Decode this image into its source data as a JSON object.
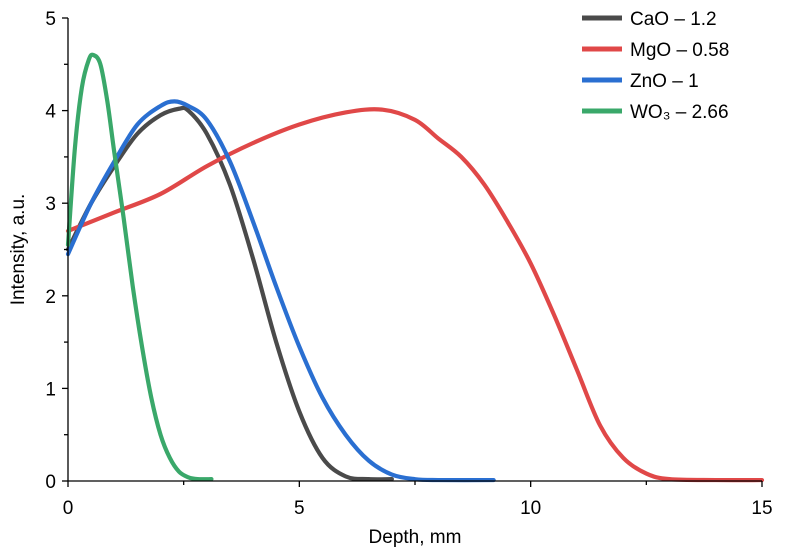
{
  "chart_data": {
    "type": "line",
    "xlabel": "Depth, mm",
    "ylabel": "Intensity, a.u.",
    "xlim": [
      0,
      15
    ],
    "ylim": [
      0,
      5
    ],
    "xticks": [
      "0",
      "5",
      "10",
      "15"
    ],
    "yticks": [
      "0",
      "1",
      "2",
      "3",
      "4",
      "5"
    ],
    "grid": false,
    "legend_position": "top-right",
    "series": [
      {
        "name": "CaO – 1.2",
        "color": "#4a4a4a",
        "x": [
          0,
          0.5,
          1.0,
          1.5,
          2.0,
          2.4,
          2.6,
          3.0,
          3.5,
          4.0,
          4.5,
          5.0,
          5.5,
          6.0,
          6.5,
          7.0
        ],
        "y": [
          2.5,
          3.0,
          3.4,
          3.75,
          3.95,
          4.02,
          4.0,
          3.75,
          3.2,
          2.4,
          1.5,
          0.75,
          0.25,
          0.05,
          0.02,
          0.02
        ]
      },
      {
        "name": "MgO – 0.58",
        "color": "#e04848",
        "x": [
          0,
          1,
          2,
          3,
          4,
          5,
          6,
          6.8,
          7.5,
          8.0,
          8.5,
          9.0,
          9.5,
          10.0,
          10.5,
          11.0,
          11.5,
          12.0,
          12.5,
          13.0,
          14.0,
          15.0
        ],
        "y": [
          2.7,
          2.9,
          3.1,
          3.4,
          3.65,
          3.85,
          3.98,
          4.01,
          3.9,
          3.7,
          3.5,
          3.2,
          2.8,
          2.35,
          1.8,
          1.2,
          0.6,
          0.25,
          0.08,
          0.02,
          0.01,
          0.01
        ]
      },
      {
        "name": "ZnO – 1",
        "color": "#2a6fd1",
        "x": [
          0,
          0.5,
          1.0,
          1.5,
          2.0,
          2.3,
          2.6,
          3.0,
          3.5,
          4.0,
          4.5,
          5.0,
          5.5,
          6.0,
          6.5,
          7.0,
          7.5,
          8.0,
          9.2
        ],
        "y": [
          2.45,
          3.0,
          3.45,
          3.85,
          4.05,
          4.1,
          4.05,
          3.9,
          3.45,
          2.8,
          2.1,
          1.45,
          0.9,
          0.5,
          0.22,
          0.07,
          0.02,
          0.01,
          0.01
        ]
      },
      {
        "name": "WO₃ – 2.66",
        "color": "#3aa86a",
        "x": [
          0,
          0.15,
          0.3,
          0.45,
          0.55,
          0.7,
          0.85,
          1.0,
          1.2,
          1.4,
          1.6,
          1.8,
          2.0,
          2.2,
          2.4,
          2.6,
          2.8,
          3.1
        ],
        "y": [
          2.55,
          3.6,
          4.25,
          4.55,
          4.6,
          4.5,
          4.1,
          3.55,
          2.85,
          2.1,
          1.45,
          0.9,
          0.5,
          0.25,
          0.1,
          0.04,
          0.02,
          0.02
        ]
      }
    ]
  }
}
